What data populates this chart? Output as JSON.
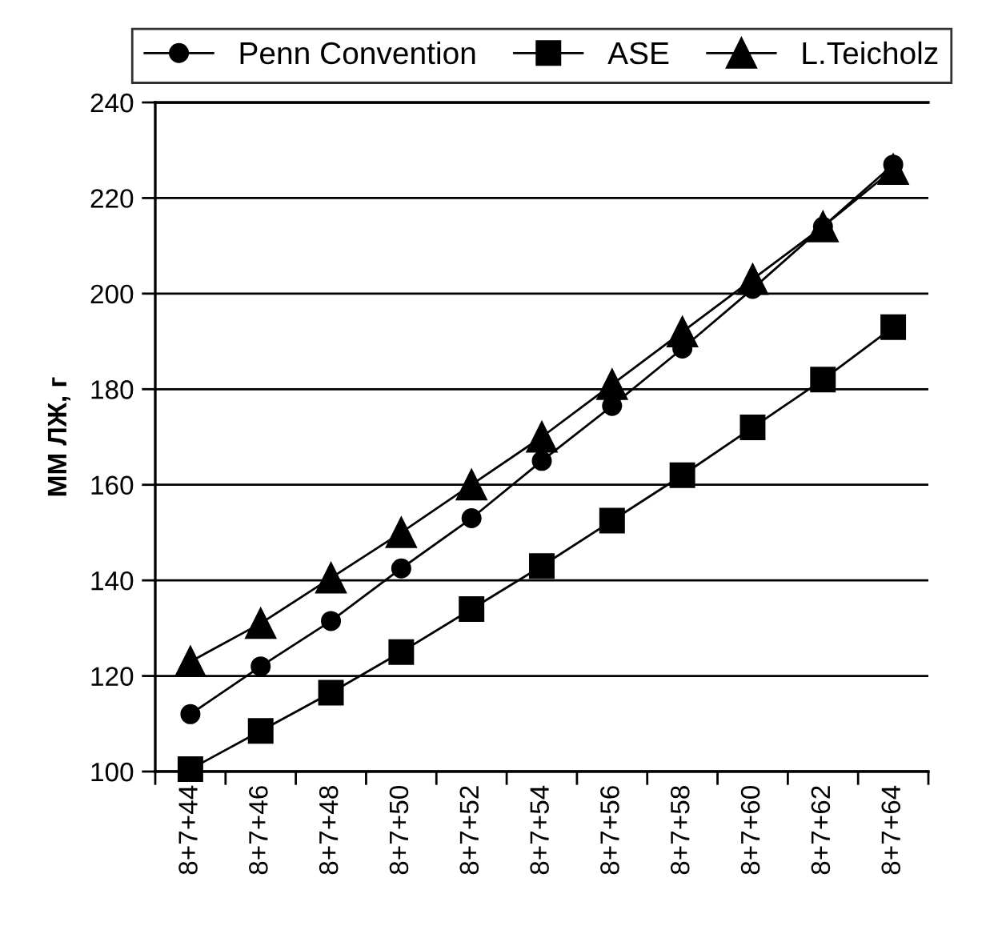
{
  "chart_data": {
    "type": "line",
    "ylabel": "ММ ЛЖ, г",
    "categories": [
      "8+7+44",
      "8+7+46",
      "8+7+48",
      "8+7+50",
      "8+7+52",
      "8+7+54",
      "8+7+56",
      "8+7+58",
      "8+7+60",
      "8+7+62",
      "8+7+64"
    ],
    "series": [
      {
        "name": "Penn Convention",
        "color": "#000000",
        "marker": "circle",
        "values": [
          112,
          122,
          131.5,
          142.5,
          153,
          165,
          176.5,
          188.5,
          201,
          214,
          227
        ]
      },
      {
        "name": "ASE",
        "color": "#000000",
        "marker": "square",
        "values": [
          100.5,
          108.5,
          116.5,
          125,
          134,
          143,
          152.5,
          162,
          172,
          182,
          193
        ]
      },
      {
        "name": "L.Teicholz",
        "color": "#000000",
        "marker": "triangle",
        "values": [
          123,
          131,
          140.5,
          150,
          160,
          170,
          181,
          192,
          203,
          214,
          226
        ]
      }
    ],
    "ylim": [
      100,
      240
    ],
    "yticks": [
      100,
      120,
      140,
      160,
      180,
      200,
      220,
      240
    ],
    "grid": "y",
    "legend": "top",
    "line_style": "solid"
  }
}
